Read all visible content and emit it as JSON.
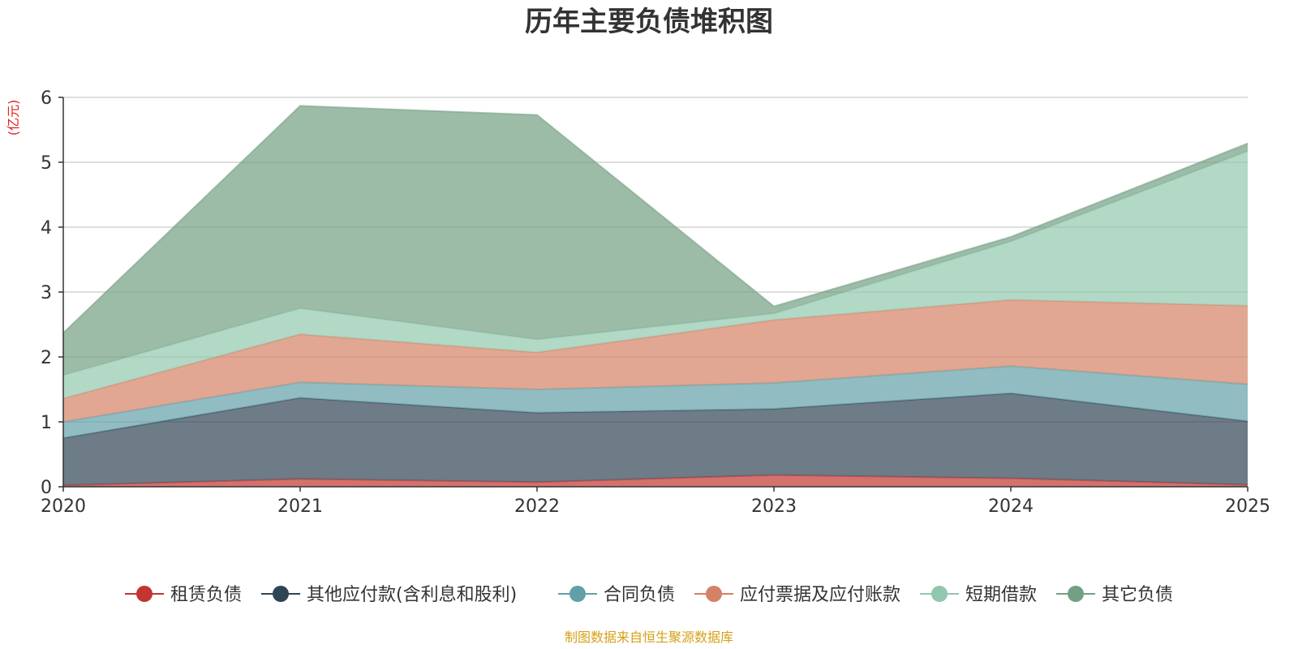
{
  "chart_data": {
    "type": "area",
    "stacked": true,
    "title": "历年主要负债堆积图",
    "ylabel": "(亿元)",
    "xlabel": "",
    "ylim": [
      0,
      6
    ],
    "yticks": [
      0,
      1,
      2,
      3,
      4,
      5,
      6
    ],
    "x": [
      "2020",
      "2021",
      "2022",
      "2023",
      "2024",
      "2025"
    ],
    "grid": true,
    "legend_position": "bottom",
    "series": [
      {
        "name": "租赁负债",
        "color": "#c23531",
        "values": [
          0.02,
          0.12,
          0.07,
          0.18,
          0.13,
          0.03
        ]
      },
      {
        "name": "其他应付款(含利息和股利)",
        "color": "#2f4554",
        "values": [
          0.73,
          1.25,
          1.07,
          1.02,
          1.31,
          0.98
        ]
      },
      {
        "name": "合同负债",
        "color": "#61a0a8",
        "values": [
          0.25,
          0.24,
          0.36,
          0.4,
          0.42,
          0.57
        ]
      },
      {
        "name": "应付票据及应付账款",
        "color": "#d48265",
        "values": [
          0.36,
          0.74,
          0.57,
          0.97,
          1.02,
          1.21
        ]
      },
      {
        "name": "短期借款",
        "color": "#91c7ae",
        "values": [
          0.36,
          0.4,
          0.2,
          0.1,
          0.9,
          2.38
        ]
      },
      {
        "name": "其它负债",
        "color": "#749f83",
        "values": [
          0.65,
          3.12,
          3.46,
          0.11,
          0.07,
          0.12
        ]
      }
    ],
    "source": "制图数据来自恒生聚源数据库"
  }
}
